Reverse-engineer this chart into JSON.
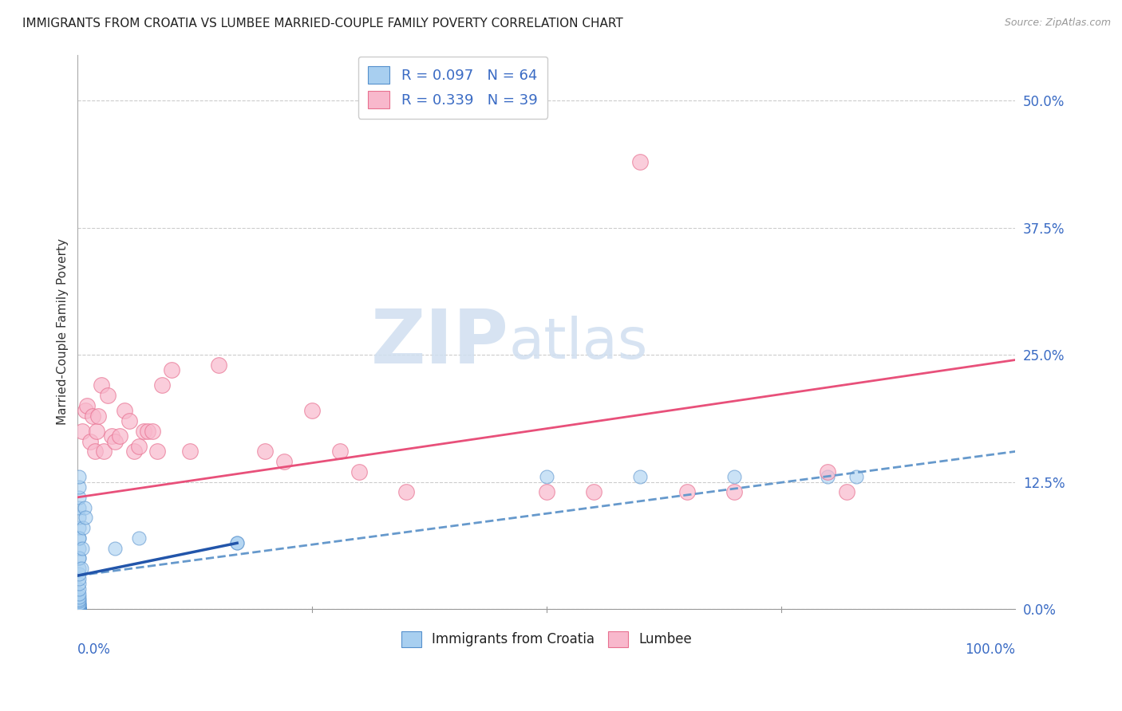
{
  "title": "IMMIGRANTS FROM CROATIA VS LUMBEE MARRIED-COUPLE FAMILY POVERTY CORRELATION CHART",
  "source": "Source: ZipAtlas.com",
  "ylabel": "Married-Couple Family Poverty",
  "ytick_labels": [
    "0.0%",
    "12.5%",
    "25.0%",
    "37.5%",
    "50.0%"
  ],
  "ytick_values": [
    0.0,
    0.125,
    0.25,
    0.375,
    0.5
  ],
  "xlim": [
    0.0,
    1.0
  ],
  "ylim": [
    0.0,
    0.545
  ],
  "legend_R1": "R = 0.097",
  "legend_N1": "N = 64",
  "legend_R2": "R = 0.339",
  "legend_N2": "N = 39",
  "watermark_zip": "ZIP",
  "watermark_atlas": "atlas",
  "croatia_color": "#a8cff0",
  "lumbee_color": "#f8b8cc",
  "croatia_edge": "#5590cc",
  "lumbee_edge": "#e87090",
  "trendline_croatia_solid_color": "#2255aa",
  "trendline_croatia_dash_color": "#6699cc",
  "trendline_lumbee_color": "#e8507a",
  "croatia_scatter_x": [
    0.001,
    0.001,
    0.001,
    0.001,
    0.001,
    0.001,
    0.001,
    0.001,
    0.001,
    0.001,
    0.001,
    0.001,
    0.001,
    0.001,
    0.001,
    0.001,
    0.001,
    0.001,
    0.001,
    0.001,
    0.001,
    0.001,
    0.001,
    0.001,
    0.001,
    0.001,
    0.001,
    0.001,
    0.001,
    0.001,
    0.001,
    0.001,
    0.001,
    0.001,
    0.001,
    0.001,
    0.001,
    0.001,
    0.001,
    0.001,
    0.001,
    0.001,
    0.001,
    0.001,
    0.001,
    0.001,
    0.001,
    0.001,
    0.001,
    0.001,
    0.004,
    0.005,
    0.006,
    0.007,
    0.008,
    0.04,
    0.065,
    0.17,
    0.17,
    0.5,
    0.6,
    0.7,
    0.8,
    0.83
  ],
  "croatia_scatter_y": [
    0.0,
    0.0,
    0.0,
    0.0,
    0.0,
    0.0,
    0.0,
    0.0,
    0.0,
    0.0,
    0.0,
    0.0,
    0.0,
    0.0,
    0.0,
    0.0,
    0.0,
    0.0,
    0.0,
    0.0,
    0.0,
    0.0,
    0.0,
    0.0,
    0.001,
    0.002,
    0.003,
    0.004,
    0.005,
    0.006,
    0.008,
    0.01,
    0.012,
    0.015,
    0.02,
    0.025,
    0.03,
    0.035,
    0.04,
    0.05,
    0.06,
    0.07,
    0.08,
    0.09,
    0.1,
    0.11,
    0.12,
    0.13,
    0.05,
    0.07,
    0.04,
    0.06,
    0.08,
    0.1,
    0.09,
    0.06,
    0.07,
    0.065,
    0.065,
    0.13,
    0.13,
    0.13,
    0.13,
    0.13
  ],
  "lumbee_scatter_x": [
    0.005,
    0.008,
    0.01,
    0.013,
    0.016,
    0.018,
    0.02,
    0.022,
    0.025,
    0.028,
    0.032,
    0.036,
    0.04,
    0.045,
    0.05,
    0.055,
    0.06,
    0.065,
    0.07,
    0.075,
    0.08,
    0.085,
    0.09,
    0.1,
    0.12,
    0.15,
    0.2,
    0.22,
    0.25,
    0.28,
    0.3,
    0.35,
    0.5,
    0.55,
    0.6,
    0.65,
    0.7,
    0.8,
    0.82
  ],
  "lumbee_scatter_y": [
    0.175,
    0.195,
    0.2,
    0.165,
    0.19,
    0.155,
    0.175,
    0.19,
    0.22,
    0.155,
    0.21,
    0.17,
    0.165,
    0.17,
    0.195,
    0.185,
    0.155,
    0.16,
    0.175,
    0.175,
    0.175,
    0.155,
    0.22,
    0.235,
    0.155,
    0.24,
    0.155,
    0.145,
    0.195,
    0.155,
    0.135,
    0.115,
    0.115,
    0.115,
    0.44,
    0.115,
    0.115,
    0.135,
    0.115
  ],
  "croatia_solid_trend_x": [
    0.0,
    0.17
  ],
  "croatia_solid_trend_y": [
    0.033,
    0.065
  ],
  "croatia_dash_trend_x": [
    0.0,
    1.0
  ],
  "croatia_dash_trend_y": [
    0.033,
    0.155
  ],
  "lumbee_trend_x": [
    0.0,
    1.0
  ],
  "lumbee_trend_y": [
    0.11,
    0.245
  ]
}
